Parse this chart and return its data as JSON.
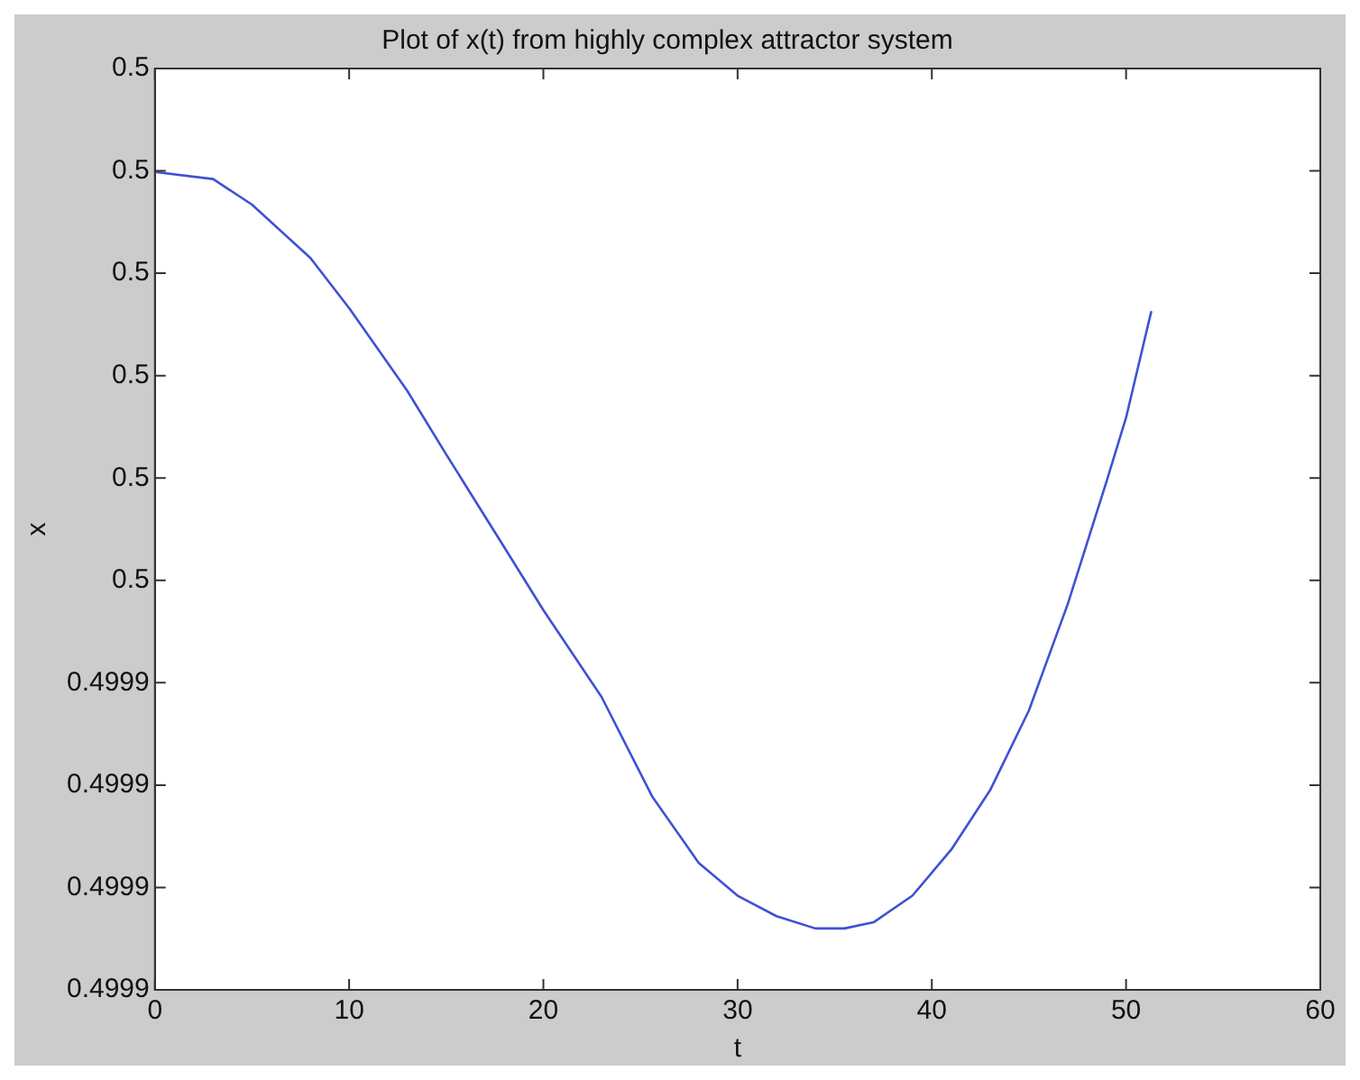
{
  "chart_data": {
    "type": "line",
    "title": "Plot of x(t) from highly complex attractor system",
    "xlabel": "t",
    "ylabel": "x",
    "x": [
      0,
      3,
      5,
      8,
      10,
      13,
      15,
      18,
      20,
      23,
      25.6,
      28,
      30,
      32,
      34,
      35.5,
      37,
      39,
      41,
      43,
      45,
      47,
      49,
      50,
      51.3
    ],
    "series": [
      {
        "color": "#3f51d4",
        "values": [
          0.4999899,
          0.4999892,
          0.4999867,
          0.4999815,
          0.4999766,
          0.4999685,
          0.4999623,
          0.4999532,
          0.4999471,
          0.4999386,
          0.4999289,
          0.4999224,
          0.4999192,
          0.4999172,
          0.499916,
          0.499916,
          0.4999166,
          0.4999192,
          0.4999237,
          0.4999295,
          0.4999373,
          0.4999477,
          0.4999597,
          0.4999659,
          0.4999763
        ]
      }
    ],
    "xlim": [
      0,
      60
    ],
    "xticks": [
      0,
      10,
      20,
      30,
      40,
      50,
      60
    ],
    "ylim": [
      0.49991,
      0.5
    ],
    "yticks": [
      {
        "value": 0.49991,
        "label": "0.4999"
      },
      {
        "value": 0.49992,
        "label": "0.4999"
      },
      {
        "value": 0.49993,
        "label": "0.4999"
      },
      {
        "value": 0.49994,
        "label": "0.4999"
      },
      {
        "value": 0.49995,
        "label": "0.5"
      },
      {
        "value": 0.49996,
        "label": "0.5"
      },
      {
        "value": 0.49997,
        "label": "0.5"
      },
      {
        "value": 0.49998,
        "label": "0.5"
      },
      {
        "value": 0.49999,
        "label": "0.5"
      },
      {
        "value": 0.5,
        "label": "0.5"
      }
    ],
    "grid": false,
    "legend": false,
    "marker": "none",
    "line_style": "solid"
  }
}
